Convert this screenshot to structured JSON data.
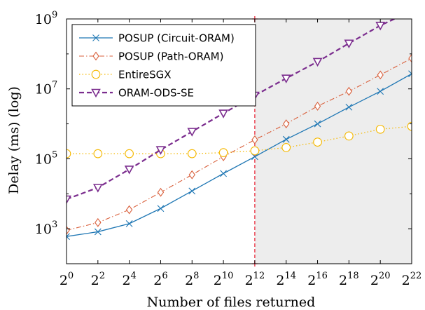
{
  "chart_data": {
    "type": "line",
    "xlabel": "Number of files returned",
    "ylabel": "Delay (ms) (log)",
    "x_scale": "log2",
    "y_scale": "log10",
    "x_tick_exponents": [
      0,
      2,
      4,
      6,
      8,
      10,
      12,
      14,
      16,
      18,
      20,
      22
    ],
    "x_tick_base": "2",
    "y_tick_exponents": [
      3,
      5,
      7,
      9
    ],
    "y_tick_base": "10",
    "x": [
      1,
      4,
      16,
      64,
      256,
      1024,
      4096,
      16384,
      65536,
      262144,
      1048576,
      4194304
    ],
    "ylim": [
      100,
      1000000000
    ],
    "legend_position": "top-left",
    "grid": false,
    "threshold_x": 4096,
    "shaded_region_from_x": 4096,
    "series": [
      {
        "name": "POSUP (Circuit-ORAM)",
        "color": "#1f77b4",
        "marker": "x",
        "line_style": "solid",
        "values": [
          600,
          820,
          1400,
          3800,
          12000,
          38000,
          115000,
          360000,
          1000000,
          3000000,
          8500000,
          27000000
        ]
      },
      {
        "name": "POSUP (Path-ORAM)",
        "color": "#d95f3b",
        "marker": "diamond",
        "line_style": "dash-dot",
        "values": [
          900,
          1500,
          3500,
          11000,
          35000,
          115000,
          350000,
          1000000,
          3200000,
          8500000,
          25000000,
          75000000
        ]
      },
      {
        "name": "EntireSGX",
        "color": "#f5b800",
        "marker": "circle",
        "line_style": "dotted",
        "values": [
          140000,
          140000,
          140000,
          140000,
          140000,
          150000,
          170000,
          210000,
          300000,
          450000,
          700000,
          850000
        ]
      },
      {
        "name": "ORAM-ODS-SE",
        "color": "#7b2d8e",
        "marker": "triangle-down",
        "line_style": "dashed",
        "values": [
          7000,
          15000,
          50000,
          180000,
          600000,
          2000000,
          6500000,
          20000000,
          60000000,
          200000000,
          650000000,
          1700000000
        ]
      }
    ]
  }
}
